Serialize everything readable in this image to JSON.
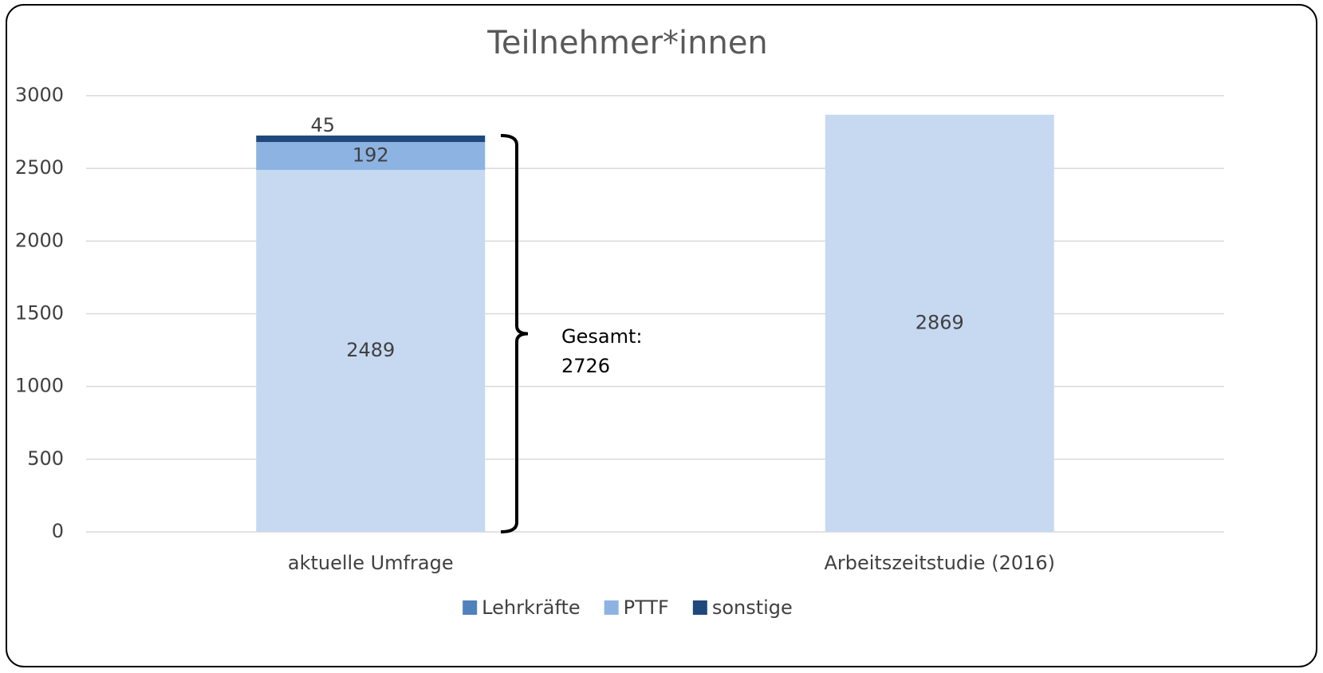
{
  "chart_data": {
    "type": "stacked_bar",
    "title": "Teilnehmer*innen",
    "categories": [
      "aktuelle Umfrage",
      "Arbeitszeitstudie (2016)"
    ],
    "series": [
      {
        "name": "Lehrkräfte",
        "color": "#c6d9f1",
        "legend_color": "#4f81bd",
        "values": [
          2489,
          2869
        ]
      },
      {
        "name": "PTTF",
        "color": "#8db3e2",
        "legend_color": "#8db3e2",
        "values": [
          192,
          null
        ]
      },
      {
        "name": "sonstige",
        "color": "#1f497d",
        "legend_color": "#1f497d",
        "values": [
          45,
          null
        ]
      }
    ],
    "ylim": [
      0,
      3000
    ],
    "yticks": [
      0,
      500,
      1000,
      1500,
      2000,
      2500,
      3000
    ],
    "grid": true,
    "annotation": {
      "label": "Gesamt:",
      "value": 2726
    },
    "legend": "bottom"
  }
}
